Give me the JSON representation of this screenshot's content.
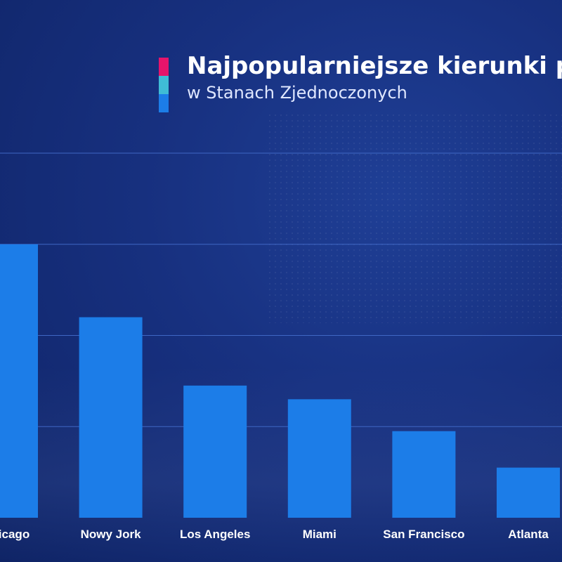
{
  "header": {
    "title": "Najpopularniejsze kierunki p",
    "subtitle": "w Stanach Zjednoczonych",
    "marker_colors": [
      "#e6146b",
      "#3fbcd6",
      "#1c7de8"
    ]
  },
  "chart_data": {
    "type": "bar",
    "title": "Najpopularniejsze kierunki p",
    "subtitle": "w Stanach Zjednoczonych",
    "categories": [
      "icago",
      "Nowy Jork",
      "Los Angeles",
      "Miami",
      "San Francisco",
      "Atlanta"
    ],
    "values": [
      3.0,
      2.2,
      1.45,
      1.3,
      0.95,
      0.55
    ],
    "ylim": [
      0,
      4
    ],
    "grid": true,
    "bar_color": "#1c7de8",
    "gridline_color": "#3f67c4"
  }
}
